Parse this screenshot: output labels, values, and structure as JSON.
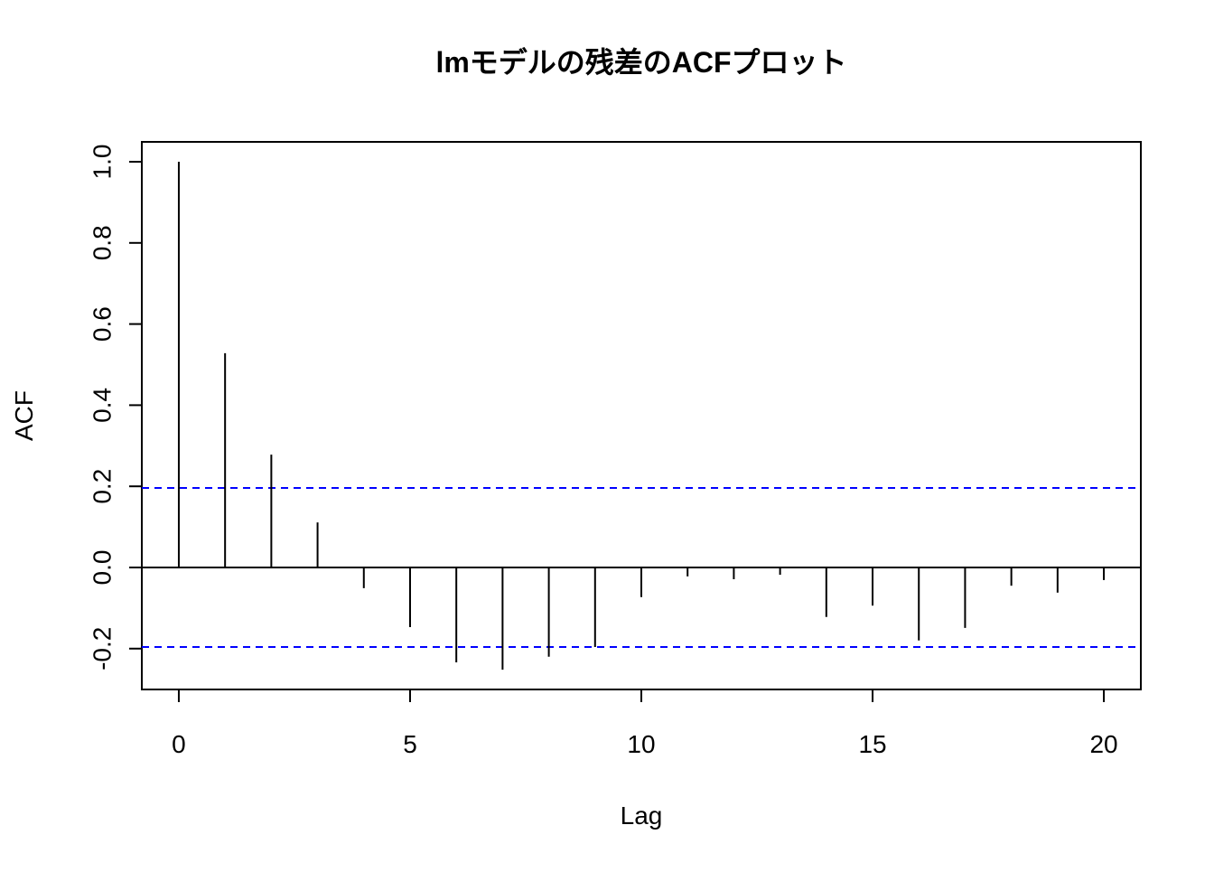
{
  "chart_data": {
    "type": "acf",
    "title": "lmモデルの残差のACFプロット",
    "xlabel": "Lag",
    "ylabel": "ACF",
    "x": [
      0,
      1,
      2,
      3,
      4,
      5,
      6,
      7,
      8,
      9,
      10,
      11,
      12,
      13,
      14,
      15,
      16,
      17,
      18,
      19,
      20
    ],
    "values": [
      1.0,
      0.528,
      0.278,
      0.111,
      -0.051,
      -0.147,
      -0.234,
      -0.252,
      -0.22,
      -0.196,
      -0.073,
      -0.022,
      -0.029,
      -0.018,
      -0.122,
      -0.094,
      -0.18,
      -0.149,
      -0.045,
      -0.062,
      -0.031
    ],
    "color": "#000000",
    "ci": 0.196,
    "ci_color": "#0000ff",
    "xlim": [
      -0.8,
      20.8
    ],
    "xticks": [
      0,
      5,
      10,
      15,
      20
    ],
    "ylim": [
      -0.3007,
      1.049
    ],
    "yticks": [
      {
        "value": -0.2,
        "label": "-0.2"
      },
      {
        "value": 0,
        "label": "0.0"
      },
      0.2,
      0.4,
      0.6,
      0.8,
      {
        "value": 1,
        "label": "1.0"
      }
    ]
  }
}
